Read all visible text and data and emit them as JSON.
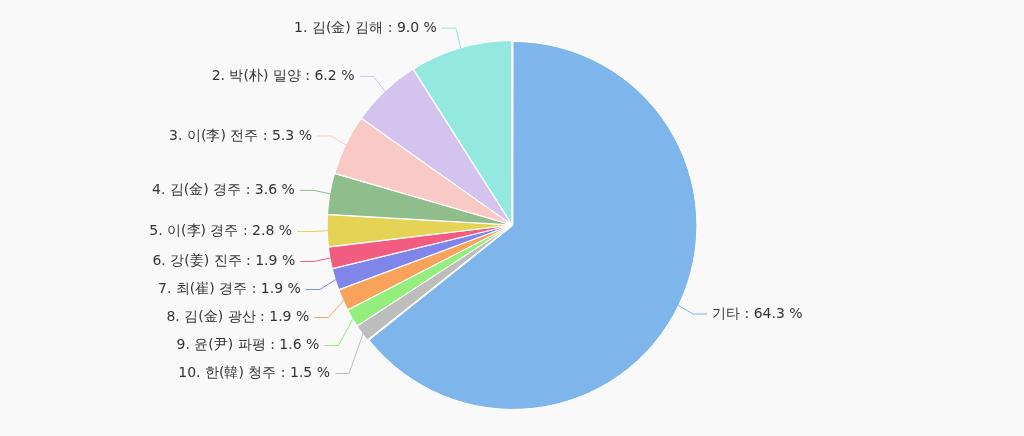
{
  "chart_data": {
    "type": "pie",
    "categories": [
      "기타",
      "10. 한(韓) 청주",
      "9. 윤(尹) 파평",
      "8. 김(金) 광산",
      "7. 최(崔) 경주",
      "6. 강(姜) 진주",
      "5. 이(李) 경주",
      "4. 김(金) 경주",
      "3. 이(李) 전주",
      "2. 박(朴) 밀양",
      "1. 김(金) 김해"
    ],
    "values": [
      64.3,
      1.5,
      1.6,
      1.9,
      1.9,
      1.9,
      2.8,
      3.6,
      5.3,
      6.2,
      9.0
    ],
    "value_labels": [
      "64.3 %",
      "1.5 %",
      "1.6 %",
      "1.9 %",
      "1.9 %",
      "1.9 %",
      "2.8 %",
      "3.6 %",
      "5.3 %",
      "6.2 %",
      "9.0 %"
    ],
    "colors": [
      "#7eb5ea",
      "#bdbdbd",
      "#93ee7e",
      "#f7a35c",
      "#8085e9",
      "#f15c80",
      "#e4d354",
      "#8fbd8b",
      "#f9c9c6",
      "#d5c3ef",
      "#93e8e0"
    ],
    "legend": false
  }
}
